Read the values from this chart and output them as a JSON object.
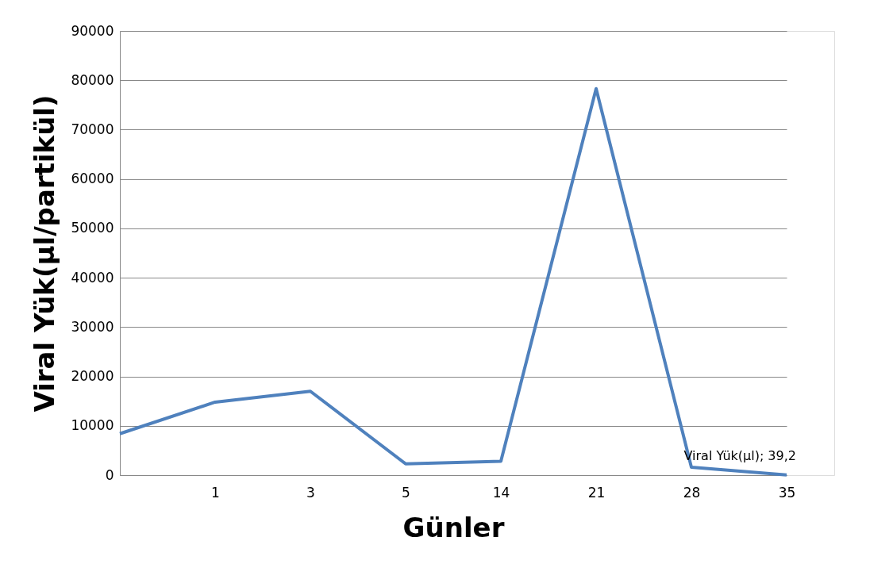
{
  "chart_data": {
    "type": "line",
    "xlabel": "Günler",
    "ylabel": "Viral Yük(µl/partikül)",
    "categories": [
      null,
      "1",
      "3",
      "5",
      "14",
      "21",
      "28",
      "35"
    ],
    "series": [
      {
        "color": "#4f81bd",
        "values": [
          8400,
          14800,
          17000,
          2300,
          2800,
          78300,
          1600,
          39.2
        ]
      }
    ],
    "ylim": [
      0,
      90000
    ],
    "yticks": [
      0,
      10000,
      20000,
      30000,
      40000,
      50000,
      60000,
      70000,
      80000,
      90000
    ],
    "grid": "y",
    "marker": "none",
    "line_style": "solid",
    "annotations": [
      {
        "text": "Viral Yük(µl); 39,2",
        "x": "35",
        "y": 39.2
      }
    ]
  }
}
